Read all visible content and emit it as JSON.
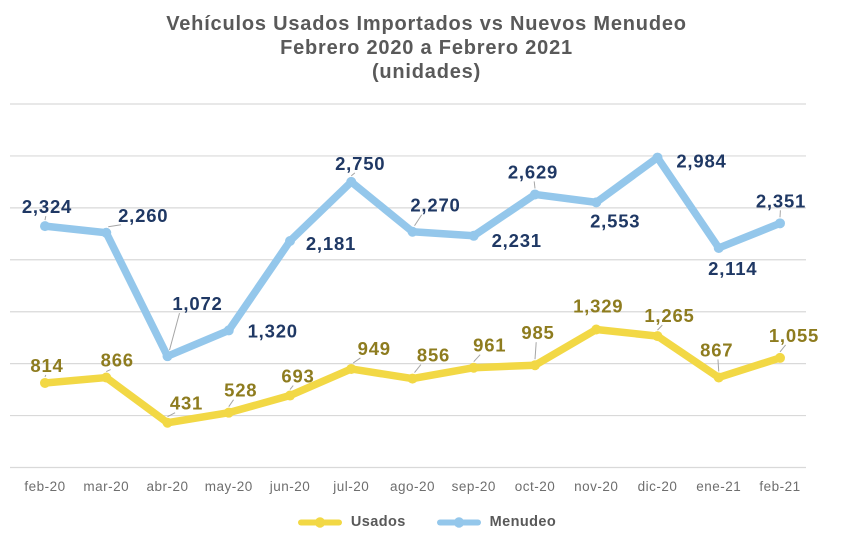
{
  "chart_data": {
    "type": "line",
    "title_lines": [
      "Vehículos Usados Importados  vs Nuevos Menudeo",
      "Febrero 2020 a Febrero 2021",
      "(unidades)"
    ],
    "categories": [
      "feb-20",
      "mar-20",
      "abr-20",
      "may-20",
      "jun-20",
      "jul-20",
      "ago-20",
      "sep-20",
      "oct-20",
      "nov-20",
      "dic-20",
      "ene-21",
      "feb-21"
    ],
    "series": [
      {
        "name": "Usados",
        "color": "#F2D845",
        "label_color": "#8E7C1F",
        "values": [
          814,
          866,
          431,
          528,
          693,
          949,
          856,
          961,
          985,
          1329,
          1265,
          867,
          1055
        ]
      },
      {
        "name": "Menudeo",
        "color": "#94C7EB",
        "label_color": "#1F3864",
        "values": [
          2324,
          2260,
          1072,
          1320,
          2181,
          2750,
          2270,
          2231,
          2629,
          2553,
          2984,
          2114,
          2351
        ]
      }
    ],
    "ylim": [
      0,
      3500
    ],
    "gridline_interval": 500,
    "grid": true,
    "y_axis_labels_visible": false,
    "legend_position": "bottom",
    "colors": {
      "gridline": "#D9D9D9",
      "axis_text": "#6E6E6E",
      "title_text": "#595959",
      "legend_text": "#595959",
      "leader_line": "#A6A6A6",
      "background": "#FFFFFF"
    }
  }
}
